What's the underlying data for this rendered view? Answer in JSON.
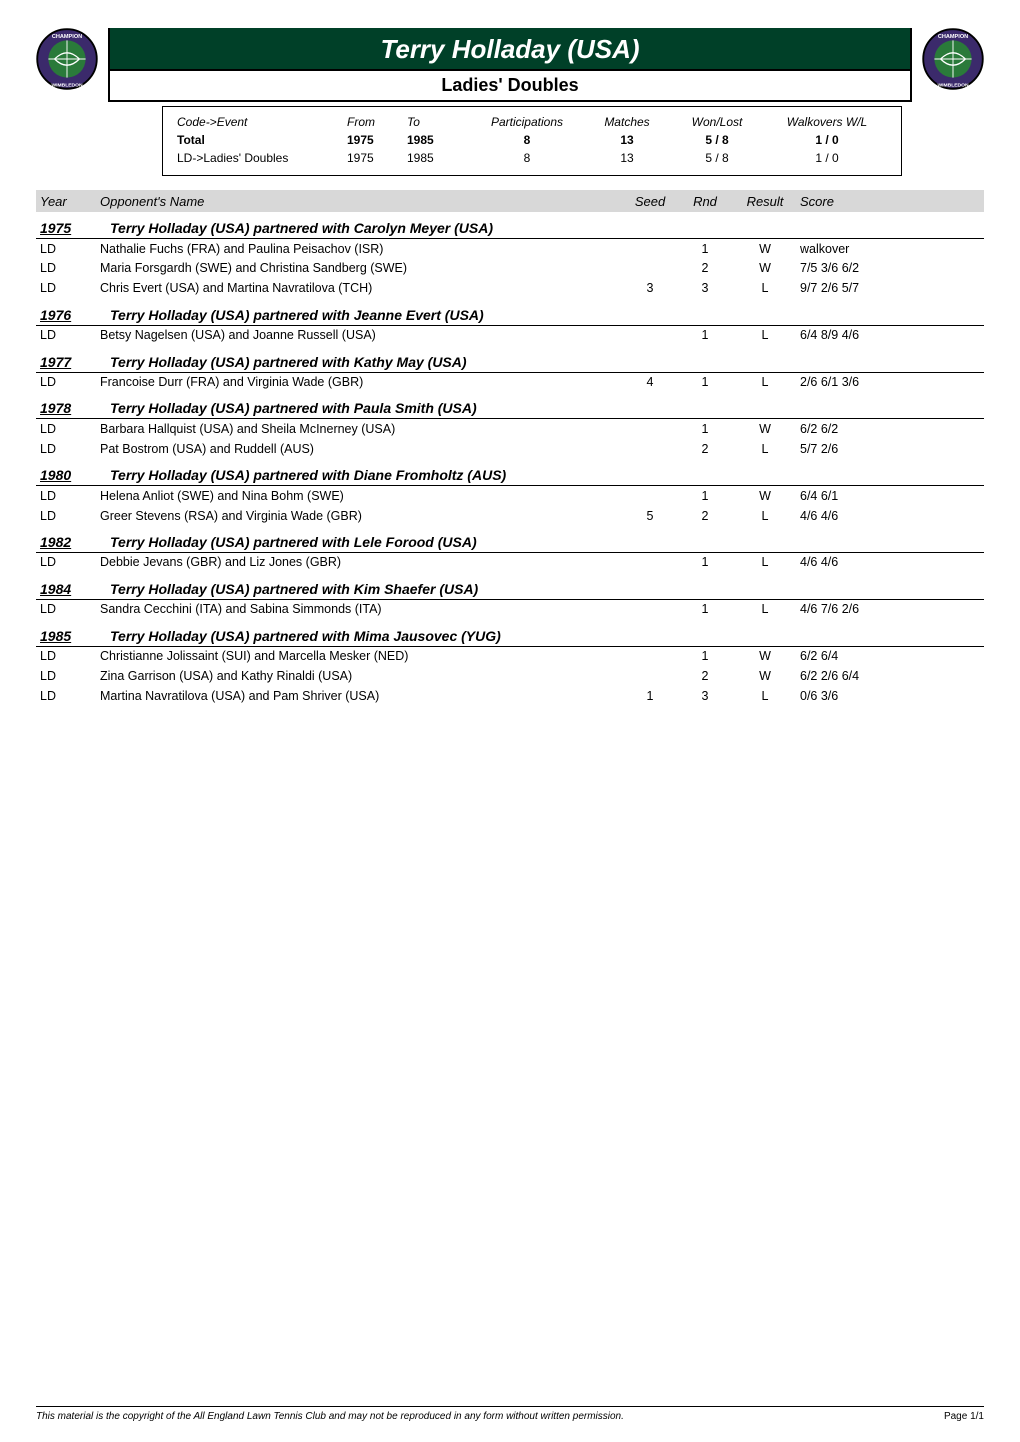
{
  "header": {
    "title": "Terry Holladay (USA)",
    "subtitle": "Ladies' Doubles"
  },
  "stats": {
    "headers": {
      "code_event": "Code->Event",
      "from": "From",
      "to": "To",
      "participations": "Participations",
      "matches": "Matches",
      "won_lost": "Won/Lost",
      "walkovers": "Walkovers W/L"
    },
    "rows": [
      {
        "label": "Total",
        "from": "1975",
        "to": "1985",
        "participations": "8",
        "matches": "13",
        "won_lost": "5 / 8",
        "walkovers": "1 / 0",
        "bold": true
      },
      {
        "label": "LD->Ladies' Doubles",
        "from": "1975",
        "to": "1985",
        "participations": "8",
        "matches": "13",
        "won_lost": "5 / 8",
        "walkovers": "1 / 0",
        "bold": false
      }
    ]
  },
  "columns": {
    "year": "Year",
    "opponent": "Opponent's Name",
    "seed": "Seed",
    "rnd": "Rnd",
    "result": "Result",
    "score": "Score"
  },
  "years": [
    {
      "year": "1975",
      "partnered": "Terry Holladay (USA) partnered with Carolyn Meyer (USA)",
      "matches": [
        {
          "code": "LD",
          "opp": "Nathalie Fuchs (FRA) and  Paulina Peisachov (ISR)",
          "seed": "",
          "rnd": "1",
          "result": "W",
          "score": "walkover"
        },
        {
          "code": "LD",
          "opp": "Maria Forsgardh (SWE) and  Christina Sandberg (SWE)",
          "seed": "",
          "rnd": "2",
          "result": "W",
          "score": "7/5 3/6 6/2"
        },
        {
          "code": "LD",
          "opp": "Chris Evert (USA) and  Martina Navratilova (TCH)",
          "seed": "3",
          "rnd": "3",
          "result": "L",
          "score": "9/7 2/6 5/7"
        }
      ]
    },
    {
      "year": "1976",
      "partnered": "Terry Holladay (USA) partnered with Jeanne Evert (USA)",
      "matches": [
        {
          "code": "LD",
          "opp": "Betsy Nagelsen (USA) and  Joanne Russell (USA)",
          "seed": "",
          "rnd": "1",
          "result": "L",
          "score": "6/4 8/9 4/6"
        }
      ]
    },
    {
      "year": "1977",
      "partnered": "Terry Holladay (USA) partnered with Kathy May (USA)",
      "matches": [
        {
          "code": "LD",
          "opp": "Francoise Durr (FRA) and  Virginia Wade (GBR)",
          "seed": "4",
          "rnd": "1",
          "result": "L",
          "score": "2/6 6/1 3/6"
        }
      ]
    },
    {
      "year": "1978",
      "partnered": "Terry Holladay (USA) partnered with Paula Smith (USA)",
      "matches": [
        {
          "code": "LD",
          "opp": "Barbara Hallquist (USA) and  Sheila McInerney (USA)",
          "seed": "",
          "rnd": "1",
          "result": "W",
          "score": "6/2 6/2"
        },
        {
          "code": "LD",
          "opp": "Pat Bostrom (USA) and   Ruddell (AUS)",
          "seed": "",
          "rnd": "2",
          "result": "L",
          "score": "5/7 2/6"
        }
      ]
    },
    {
      "year": "1980",
      "partnered": "Terry Holladay (USA) partnered with Diane Fromholtz (AUS)",
      "matches": [
        {
          "code": "LD",
          "opp": "Helena Anliot (SWE) and  Nina Bohm (SWE)",
          "seed": "",
          "rnd": "1",
          "result": "W",
          "score": "6/4 6/1"
        },
        {
          "code": "LD",
          "opp": "Greer Stevens (RSA) and  Virginia Wade (GBR)",
          "seed": "5",
          "rnd": "2",
          "result": "L",
          "score": "4/6 4/6"
        }
      ]
    },
    {
      "year": "1982",
      "partnered": "Terry Holladay (USA) partnered with Lele Forood (USA)",
      "matches": [
        {
          "code": "LD",
          "opp": "Debbie Jevans (GBR) and  Liz Jones (GBR)",
          "seed": "",
          "rnd": "1",
          "result": "L",
          "score": "4/6 4/6"
        }
      ]
    },
    {
      "year": "1984",
      "partnered": "Terry Holladay (USA) partnered with Kim Shaefer (USA)",
      "matches": [
        {
          "code": "LD",
          "opp": "Sandra Cecchini (ITA) and  Sabina Simmonds (ITA)",
          "seed": "",
          "rnd": "1",
          "result": "L",
          "score": "4/6 7/6 2/6"
        }
      ]
    },
    {
      "year": "1985",
      "partnered": "Terry Holladay (USA) partnered with Mima Jausovec (YUG)",
      "matches": [
        {
          "code": "LD",
          "opp": "Christianne Jolissaint (SUI) and  Marcella Mesker (NED)",
          "seed": "",
          "rnd": "1",
          "result": "W",
          "score": "6/2 6/4"
        },
        {
          "code": "LD",
          "opp": "Zina Garrison (USA) and  Kathy Rinaldi (USA)",
          "seed": "",
          "rnd": "2",
          "result": "W",
          "score": "6/2 2/6 6/4"
        },
        {
          "code": "LD",
          "opp": "Martina Navratilova (USA) and  Pam Shriver (USA)",
          "seed": "1",
          "rnd": "3",
          "result": "L",
          "score": "0/6 3/6"
        }
      ]
    }
  ],
  "footer": {
    "copyright": "This material is the copyright of the All England Lawn Tennis Club and may not be reproduced in any form without written permission.",
    "page": "Page 1/1"
  },
  "style": {
    "header_bg": "#004028",
    "header_fg": "#ffffff",
    "column_header_bg": "#d8d8d8"
  }
}
